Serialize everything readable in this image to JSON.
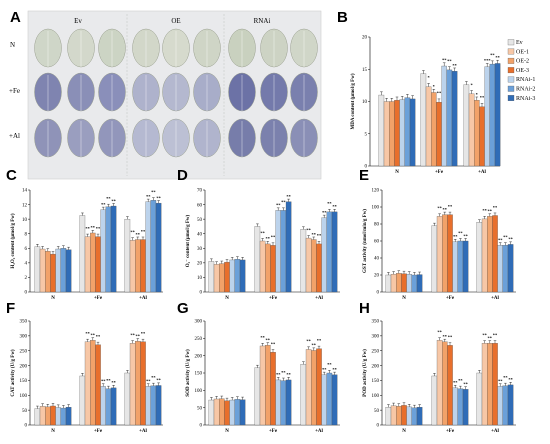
{
  "panel_labels": [
    "A",
    "B",
    "C",
    "D",
    "E",
    "F",
    "G",
    "H"
  ],
  "leaf_panel": {
    "columns": [
      "Ev",
      "OE",
      "RNAi"
    ],
    "rows": [
      "N",
      "+Fe",
      "+Al"
    ]
  },
  "legend": [
    "Ev",
    "OE-1",
    "OE-2",
    "OE-3",
    "RNAi-1",
    "RNAi-2",
    "RNAi-3"
  ],
  "colors": [
    "#e6e6e6",
    "#f7c7a6",
    "#f2a269",
    "#e86f2c",
    "#bcd3ec",
    "#6ba0d9",
    "#2f6cb7"
  ],
  "chart_data": [
    {
      "panel": "B",
      "type": "bar",
      "ylabel": "MDA content (μmol/g Fw)",
      "ylim": [
        0,
        20
      ],
      "yticks": [
        0,
        5,
        10,
        15,
        20
      ],
      "categories": [
        "N",
        "+Fe",
        "+Al"
      ],
      "series": [
        {
          "name": "Ev",
          "values": [
            11,
            14.3,
            12.6
          ]
        },
        {
          "name": "OE-1",
          "values": [
            10,
            12.3,
            11.2
          ]
        },
        {
          "name": "OE-2",
          "values": [
            10,
            11.4,
            10.2
          ]
        },
        {
          "name": "OE-3",
          "values": [
            10.2,
            9.9,
            9.2
          ]
        },
        {
          "name": "RNAi-1",
          "values": [
            10.3,
            15.5,
            15.4
          ]
        },
        {
          "name": "RNAi-2",
          "values": [
            10.6,
            14.9,
            15.8
          ]
        },
        {
          "name": "RNAi-3",
          "values": [
            10.4,
            14.7,
            15.9
          ]
        }
      ],
      "stars": [
        [
          "",
          "",
          "",
          "",
          "",
          "",
          ""
        ],
        [
          "",
          "*",
          "*",
          "**",
          "**",
          "**",
          "**"
        ],
        [
          "",
          "*",
          "*",
          "**",
          "***",
          "**",
          "**"
        ]
      ]
    },
    {
      "panel": "C",
      "type": "bar",
      "ylabel": "H₂O₂ content (μmol/g Fw)",
      "ylim": [
        0,
        14
      ],
      "yticks": [
        0,
        2,
        4,
        6,
        8,
        10,
        12,
        14
      ],
      "categories": [
        "N",
        "+Fe",
        "+Al"
      ],
      "series": [
        {
          "name": "Ev",
          "values": [
            6.2,
            10.5,
            10
          ]
        },
        {
          "name": "OE-1",
          "values": [
            5.9,
            7.6,
            7.1
          ]
        },
        {
          "name": "OE-2",
          "values": [
            5.6,
            8.1,
            7.2
          ]
        },
        {
          "name": "OE-3",
          "values": [
            5.2,
            7.6,
            7.2
          ]
        },
        {
          "name": "RNAi-1",
          "values": [
            5.9,
            11.3,
            12.4
          ]
        },
        {
          "name": "RNAi-2",
          "values": [
            6,
            11.7,
            12.6
          ]
        },
        {
          "name": "RNAi-3",
          "values": [
            5.8,
            11.8,
            12.2
          ]
        }
      ],
      "stars": [
        [
          "",
          "",
          "",
          "",
          "",
          "",
          ""
        ],
        [
          "",
          "**",
          "**",
          "**",
          "**",
          "**",
          "**"
        ],
        [
          "",
          "**",
          "**",
          "**",
          "**",
          "**",
          "**"
        ]
      ]
    },
    {
      "panel": "D",
      "type": "bar",
      "ylabel": "O₂⁻ content (μmol/g Fw)",
      "ylim": [
        0,
        70
      ],
      "yticks": [
        0,
        10,
        20,
        30,
        40,
        50,
        60,
        70
      ],
      "categories": [
        "N",
        "+Fe",
        "+Al"
      ],
      "series": [
        {
          "name": "Ev",
          "values": [
            21,
            45,
            43
          ]
        },
        {
          "name": "OE-1",
          "values": [
            19,
            35,
            37
          ]
        },
        {
          "name": "OE-2",
          "values": [
            19.5,
            33,
            36
          ]
        },
        {
          "name": "OE-3",
          "values": [
            20.5,
            32,
            33
          ]
        },
        {
          "name": "RNAi-1",
          "values": [
            22,
            56,
            51
          ]
        },
        {
          "name": "RNAi-2",
          "values": [
            22.5,
            56,
            55
          ]
        },
        {
          "name": "RNAi-3",
          "values": [
            22,
            62,
            55
          ]
        }
      ],
      "stars": [
        [
          "",
          "",
          "",
          "",
          "",
          "",
          ""
        ],
        [
          "",
          "**",
          "**",
          "**",
          "**",
          "**",
          "**"
        ],
        [
          "",
          "**",
          "**",
          "**",
          "**",
          "**",
          "**"
        ]
      ]
    },
    {
      "panel": "E",
      "type": "bar",
      "ylabel": "GST activity (nmol/min/g Fw)",
      "ylim": [
        0,
        120
      ],
      "yticks": [
        0,
        20,
        40,
        60,
        80,
        100,
        120
      ],
      "categories": [
        "N",
        "+Fe",
        "+Al"
      ],
      "series": [
        {
          "name": "Ev",
          "values": [
            20,
            78,
            82
          ]
        },
        {
          "name": "OE-1",
          "values": [
            21,
            89,
            86
          ]
        },
        {
          "name": "OE-2",
          "values": [
            22,
            91,
            89
          ]
        },
        {
          "name": "OE-3",
          "values": [
            21.5,
            91,
            90
          ]
        },
        {
          "name": "RNAi-1",
          "values": [
            21,
            59,
            55
          ]
        },
        {
          "name": "RNAi-2",
          "values": [
            20,
            60,
            55
          ]
        },
        {
          "name": "RNAi-3",
          "values": [
            20.5,
            60,
            56
          ]
        }
      ],
      "stars": [
        [
          "",
          "",
          "",
          "",
          "",
          "",
          ""
        ],
        [
          "",
          "**",
          "**",
          "**",
          "**",
          "**",
          "**"
        ],
        [
          "",
          "**",
          "**",
          "**",
          "**",
          "**",
          "**"
        ]
      ]
    },
    {
      "panel": "F",
      "type": "bar",
      "ylabel": "CAT activity (U/g Fw)",
      "ylim": [
        0,
        350
      ],
      "yticks": [
        0,
        50,
        100,
        150,
        200,
        250,
        300,
        350
      ],
      "categories": [
        "N",
        "+Fe",
        "+Al"
      ],
      "series": [
        {
          "name": "Ev",
          "values": [
            55,
            165,
            175
          ]
        },
        {
          "name": "OE-1",
          "values": [
            63,
            280,
            275
          ]
        },
        {
          "name": "OE-2",
          "values": [
            61,
            285,
            282
          ]
        },
        {
          "name": "OE-3",
          "values": [
            64,
            270,
            280
          ]
        },
        {
          "name": "RNAi-1",
          "values": [
            59,
            130,
            130
          ]
        },
        {
          "name": "RNAi-2",
          "values": [
            57,
            122,
            132
          ]
        },
        {
          "name": "RNAi-3",
          "values": [
            60,
            125,
            133
          ]
        }
      ],
      "stars": [
        [
          "",
          "",
          "",
          "",
          "",
          "",
          ""
        ],
        [
          "",
          "**",
          "**",
          "**",
          "**",
          "**",
          "**"
        ],
        [
          "",
          "**",
          "**",
          "**",
          "**",
          "**",
          "**"
        ]
      ]
    },
    {
      "panel": "G",
      "type": "bar",
      "ylabel": "SOD activity (U/g Fw)",
      "ylim": [
        0,
        300
      ],
      "yticks": [
        0,
        50,
        100,
        150,
        200,
        250,
        300
      ],
      "categories": [
        "N",
        "+Fe",
        "+Al"
      ],
      "series": [
        {
          "name": "Ev",
          "values": [
            72,
            165,
            175
          ]
        },
        {
          "name": "OE-1",
          "values": [
            75,
            228,
            218
          ]
        },
        {
          "name": "OE-2",
          "values": [
            76,
            230,
            215
          ]
        },
        {
          "name": "OE-3",
          "values": [
            70,
            210,
            220
          ]
        },
        {
          "name": "RNAi-1",
          "values": [
            72,
            130,
            145
          ]
        },
        {
          "name": "RNAi-2",
          "values": [
            74,
            128,
            150
          ]
        },
        {
          "name": "RNAi-3",
          "values": [
            73,
            130,
            145
          ]
        }
      ],
      "stars": [
        [
          "",
          "",
          "",
          "",
          "",
          "",
          ""
        ],
        [
          "",
          "**",
          "**",
          "**",
          "**",
          "**",
          "**"
        ],
        [
          "",
          "**",
          "**",
          "**",
          "**",
          "**",
          "**"
        ]
      ]
    },
    {
      "panel": "H",
      "type": "bar",
      "ylabel": "POD activity (U/g Fw)",
      "ylim": [
        0,
        350
      ],
      "yticks": [
        0,
        50,
        100,
        150,
        200,
        250,
        300,
        350
      ],
      "categories": [
        "N",
        "+Fe",
        "+Al"
      ],
      "series": [
        {
          "name": "Ev",
          "values": [
            60,
            165,
            175
          ]
        },
        {
          "name": "OE-1",
          "values": [
            65,
            285,
            275
          ]
        },
        {
          "name": "OE-2",
          "values": [
            63,
            280,
            275
          ]
        },
        {
          "name": "OE-3",
          "values": [
            66,
            268,
            275
          ]
        },
        {
          "name": "RNAi-1",
          "values": [
            61,
            125,
            130
          ]
        },
        {
          "name": "RNAi-2",
          "values": [
            58,
            122,
            132
          ]
        },
        {
          "name": "RNAi-3",
          "values": [
            60,
            120,
            135
          ]
        }
      ],
      "stars": [
        [
          "",
          "",
          "",
          "",
          "",
          "",
          ""
        ],
        [
          "",
          "**",
          "**",
          "**",
          "**",
          "**",
          "**"
        ],
        [
          "",
          "**",
          "**",
          "**",
          "**",
          "**",
          "**"
        ]
      ]
    }
  ]
}
